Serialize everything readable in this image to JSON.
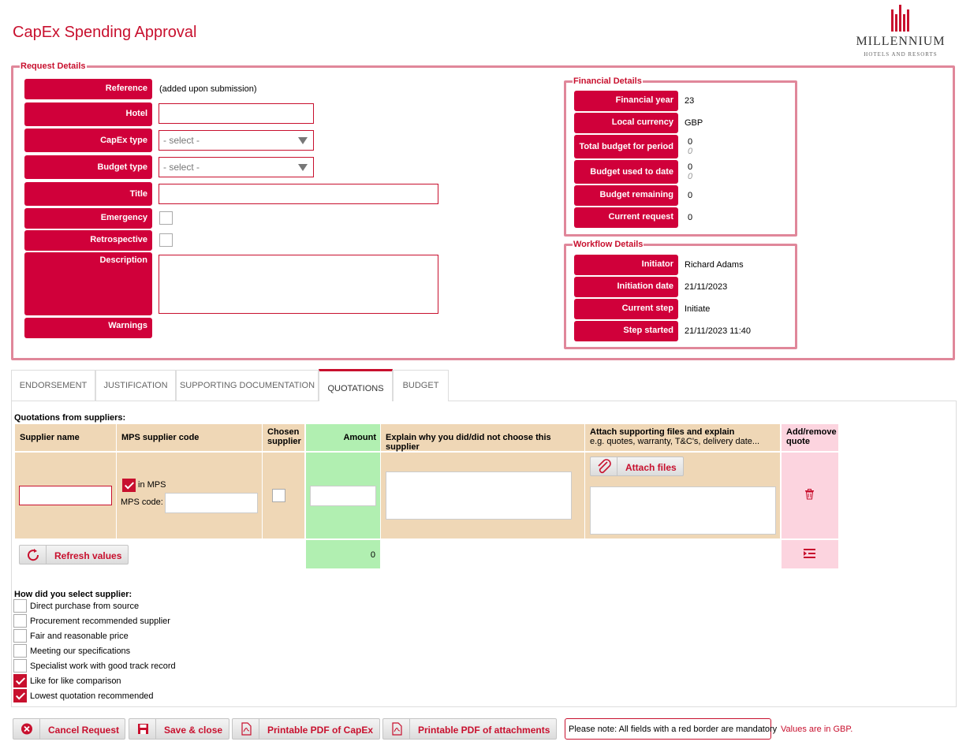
{
  "page": {
    "title": "CapEx Spending Approval"
  },
  "logo": {
    "name": "MILLENNIUM",
    "subtitle": "HOTELS AND RESORTS"
  },
  "request_details": {
    "legend": "Request Details",
    "reference_label": "Reference",
    "reference_value": "(added upon submission)",
    "hotel_label": "Hotel",
    "capex_type_label": "CapEx type",
    "capex_type_value": "- select -",
    "budget_type_label": "Budget type",
    "budget_type_value": "- select -",
    "title_label": "Title",
    "emergency_label": "Emergency",
    "retrospective_label": "Retrospective",
    "description_label": "Description",
    "warnings_label": "Warnings"
  },
  "financial_details": {
    "legend": "Financial Details",
    "financial_year_label": "Financial year",
    "financial_year_value": "23",
    "local_currency_label": "Local currency",
    "local_currency_value": "GBP",
    "total_budget_label": "Total budget for period",
    "total_budget_value": "0",
    "total_budget_sub": "0",
    "budget_used_label": "Budget used to date",
    "budget_used_value": "0",
    "budget_used_sub": "0",
    "budget_remaining_label": "Budget remaining",
    "budget_remaining_value": "0",
    "current_request_label": "Current request",
    "current_request_value": "0"
  },
  "workflow_details": {
    "legend": "Workflow Details",
    "initiator_label": "Initiator",
    "initiator_value": "Richard Adams",
    "initiation_date_label": "Initiation date",
    "initiation_date_value": "21/11/2023",
    "current_step_label": "Current step",
    "current_step_value": "Initiate",
    "step_started_label": "Step started",
    "step_started_value": "21/11/2023 11:40"
  },
  "tabs": [
    "ENDORSEMENT",
    "JUSTIFICATION",
    "SUPPORTING DOCUMENTATION",
    "QUOTATIONS",
    "BUDGET"
  ],
  "active_tab": "QUOTATIONS",
  "quotations": {
    "heading": "Quotations from suppliers:",
    "col_supplier_name": "Supplier name",
    "col_mps_code": "MPS supplier code",
    "col_chosen_1": "Chosen",
    "col_chosen_2": "supplier",
    "col_amount": "Amount",
    "col_explain": "Explain why you did/did not choose this supplier",
    "col_attach": "Attach supporting files and explain",
    "col_attach_sub": "e.g. quotes, warranty, T&C's, delivery date...",
    "col_add_remove_1": "Add/remove",
    "col_add_remove_2": "quote",
    "in_mps_label": "in MPS",
    "in_mps_checked": true,
    "mps_code_label": "MPS code:",
    "attach_files_label": "Attach files",
    "refresh_values_label": "Refresh values",
    "amount_total": "0"
  },
  "selection": {
    "heading": "How did you select supplier:",
    "options": [
      {
        "label": "Direct purchase from source",
        "checked": false
      },
      {
        "label": "Procurement recommended supplier",
        "checked": false
      },
      {
        "label": "Fair and reasonable price",
        "checked": false
      },
      {
        "label": "Meeting our specifications",
        "checked": false
      },
      {
        "label": "Specialist work with good track record",
        "checked": false
      },
      {
        "label": "Like for like comparison",
        "checked": true
      },
      {
        "label": "Lowest quotation recommended",
        "checked": true
      }
    ]
  },
  "footer": {
    "cancel_label": "Cancel Request",
    "save_label": "Save & close",
    "pdf_capex_label": "Printable PDF of CapEx",
    "pdf_attachments_label": "Printable PDF of attachments",
    "note": "Please note: All fields with a red border are mandatory",
    "currency_note": "Values are in GBP."
  },
  "colors": {
    "accent": "#c8102e",
    "label_bg": "#d0003a",
    "tan": "#efd7b6",
    "green": "#b1efb1",
    "pink": "#fcd4df"
  }
}
